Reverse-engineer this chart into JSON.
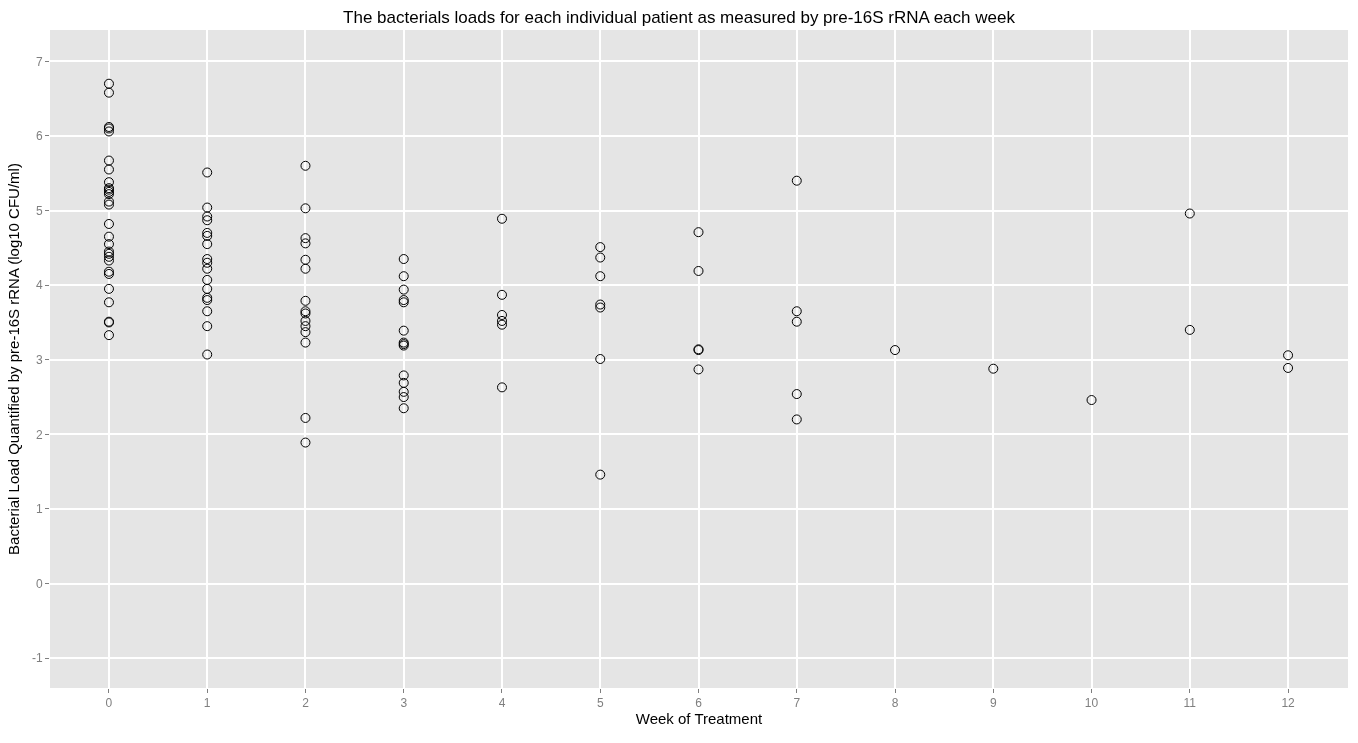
{
  "chart_data": {
    "type": "scatter",
    "title": "The bacterials loads for each individual patient as measured by pre-16S rRNA each week",
    "xlabel": "Week of Treatment",
    "ylabel": "Bacterial Load Quantified by pre-16S rRNA (log10 CFU/ml)",
    "series": [
      {
        "color": "#000000",
        "x": [
          0,
          0,
          0,
          0,
          0,
          0,
          0,
          0,
          0,
          0,
          0,
          0,
          0,
          0,
          0,
          0,
          0,
          0,
          0,
          0,
          0,
          0,
          0,
          0,
          0,
          0,
          0,
          0,
          1,
          1,
          1,
          1,
          1,
          1,
          1,
          1,
          1,
          1,
          1,
          1,
          1,
          1,
          1,
          1,
          1,
          2,
          2,
          2,
          2,
          2,
          2,
          2,
          2,
          2,
          2,
          2,
          2,
          2,
          2,
          2,
          3,
          3,
          3,
          3,
          3,
          3,
          3,
          3,
          3,
          3,
          3,
          3,
          3,
          3,
          4,
          4,
          4,
          4,
          4,
          4,
          5,
          5,
          5,
          5,
          5,
          5,
          5,
          6,
          6,
          6,
          6,
          6,
          7,
          7,
          7,
          7,
          7,
          8,
          9,
          10,
          11,
          11,
          12,
          12
        ],
        "values": [
          6.7,
          6.58,
          6.12,
          6.1,
          6.06,
          5.67,
          5.55,
          5.38,
          5.3,
          5.28,
          5.25,
          5.22,
          5.12,
          5.08,
          4.82,
          4.65,
          4.55,
          4.45,
          4.42,
          4.38,
          4.33,
          4.18,
          4.15,
          3.95,
          3.77,
          3.51,
          3.5,
          3.33,
          5.51,
          5.04,
          4.92,
          4.87,
          4.7,
          4.66,
          4.55,
          4.35,
          4.3,
          4.22,
          4.07,
          3.95,
          3.83,
          3.8,
          3.65,
          3.45,
          3.07,
          5.6,
          5.03,
          4.63,
          4.56,
          4.34,
          4.22,
          3.79,
          3.65,
          3.62,
          3.52,
          3.45,
          3.37,
          3.23,
          2.22,
          1.89,
          4.35,
          4.12,
          3.94,
          3.8,
          3.77,
          3.39,
          3.23,
          3.21,
          3.19,
          2.79,
          2.69,
          2.57,
          2.5,
          2.35,
          4.89,
          3.87,
          3.6,
          3.52,
          3.47,
          2.63,
          4.51,
          4.37,
          4.12,
          3.74,
          3.7,
          3.01,
          1.46,
          4.71,
          4.19,
          3.14,
          3.13,
          2.87,
          5.4,
          3.65,
          3.51,
          2.54,
          2.2,
          3.13,
          2.88,
          2.46,
          4.96,
          3.4,
          3.06,
          2.89
        ]
      }
    ],
    "marker": "circle",
    "xlim": [
      -0.6,
      12.61
    ],
    "xticks": [
      0,
      1,
      2,
      3,
      4,
      5,
      6,
      7,
      8,
      9,
      10,
      11,
      12
    ],
    "ylim": [
      -1.4,
      7.42
    ],
    "yticks": [
      -1,
      0,
      1,
      2,
      3,
      4,
      5,
      6,
      7
    ],
    "grid": true
  }
}
